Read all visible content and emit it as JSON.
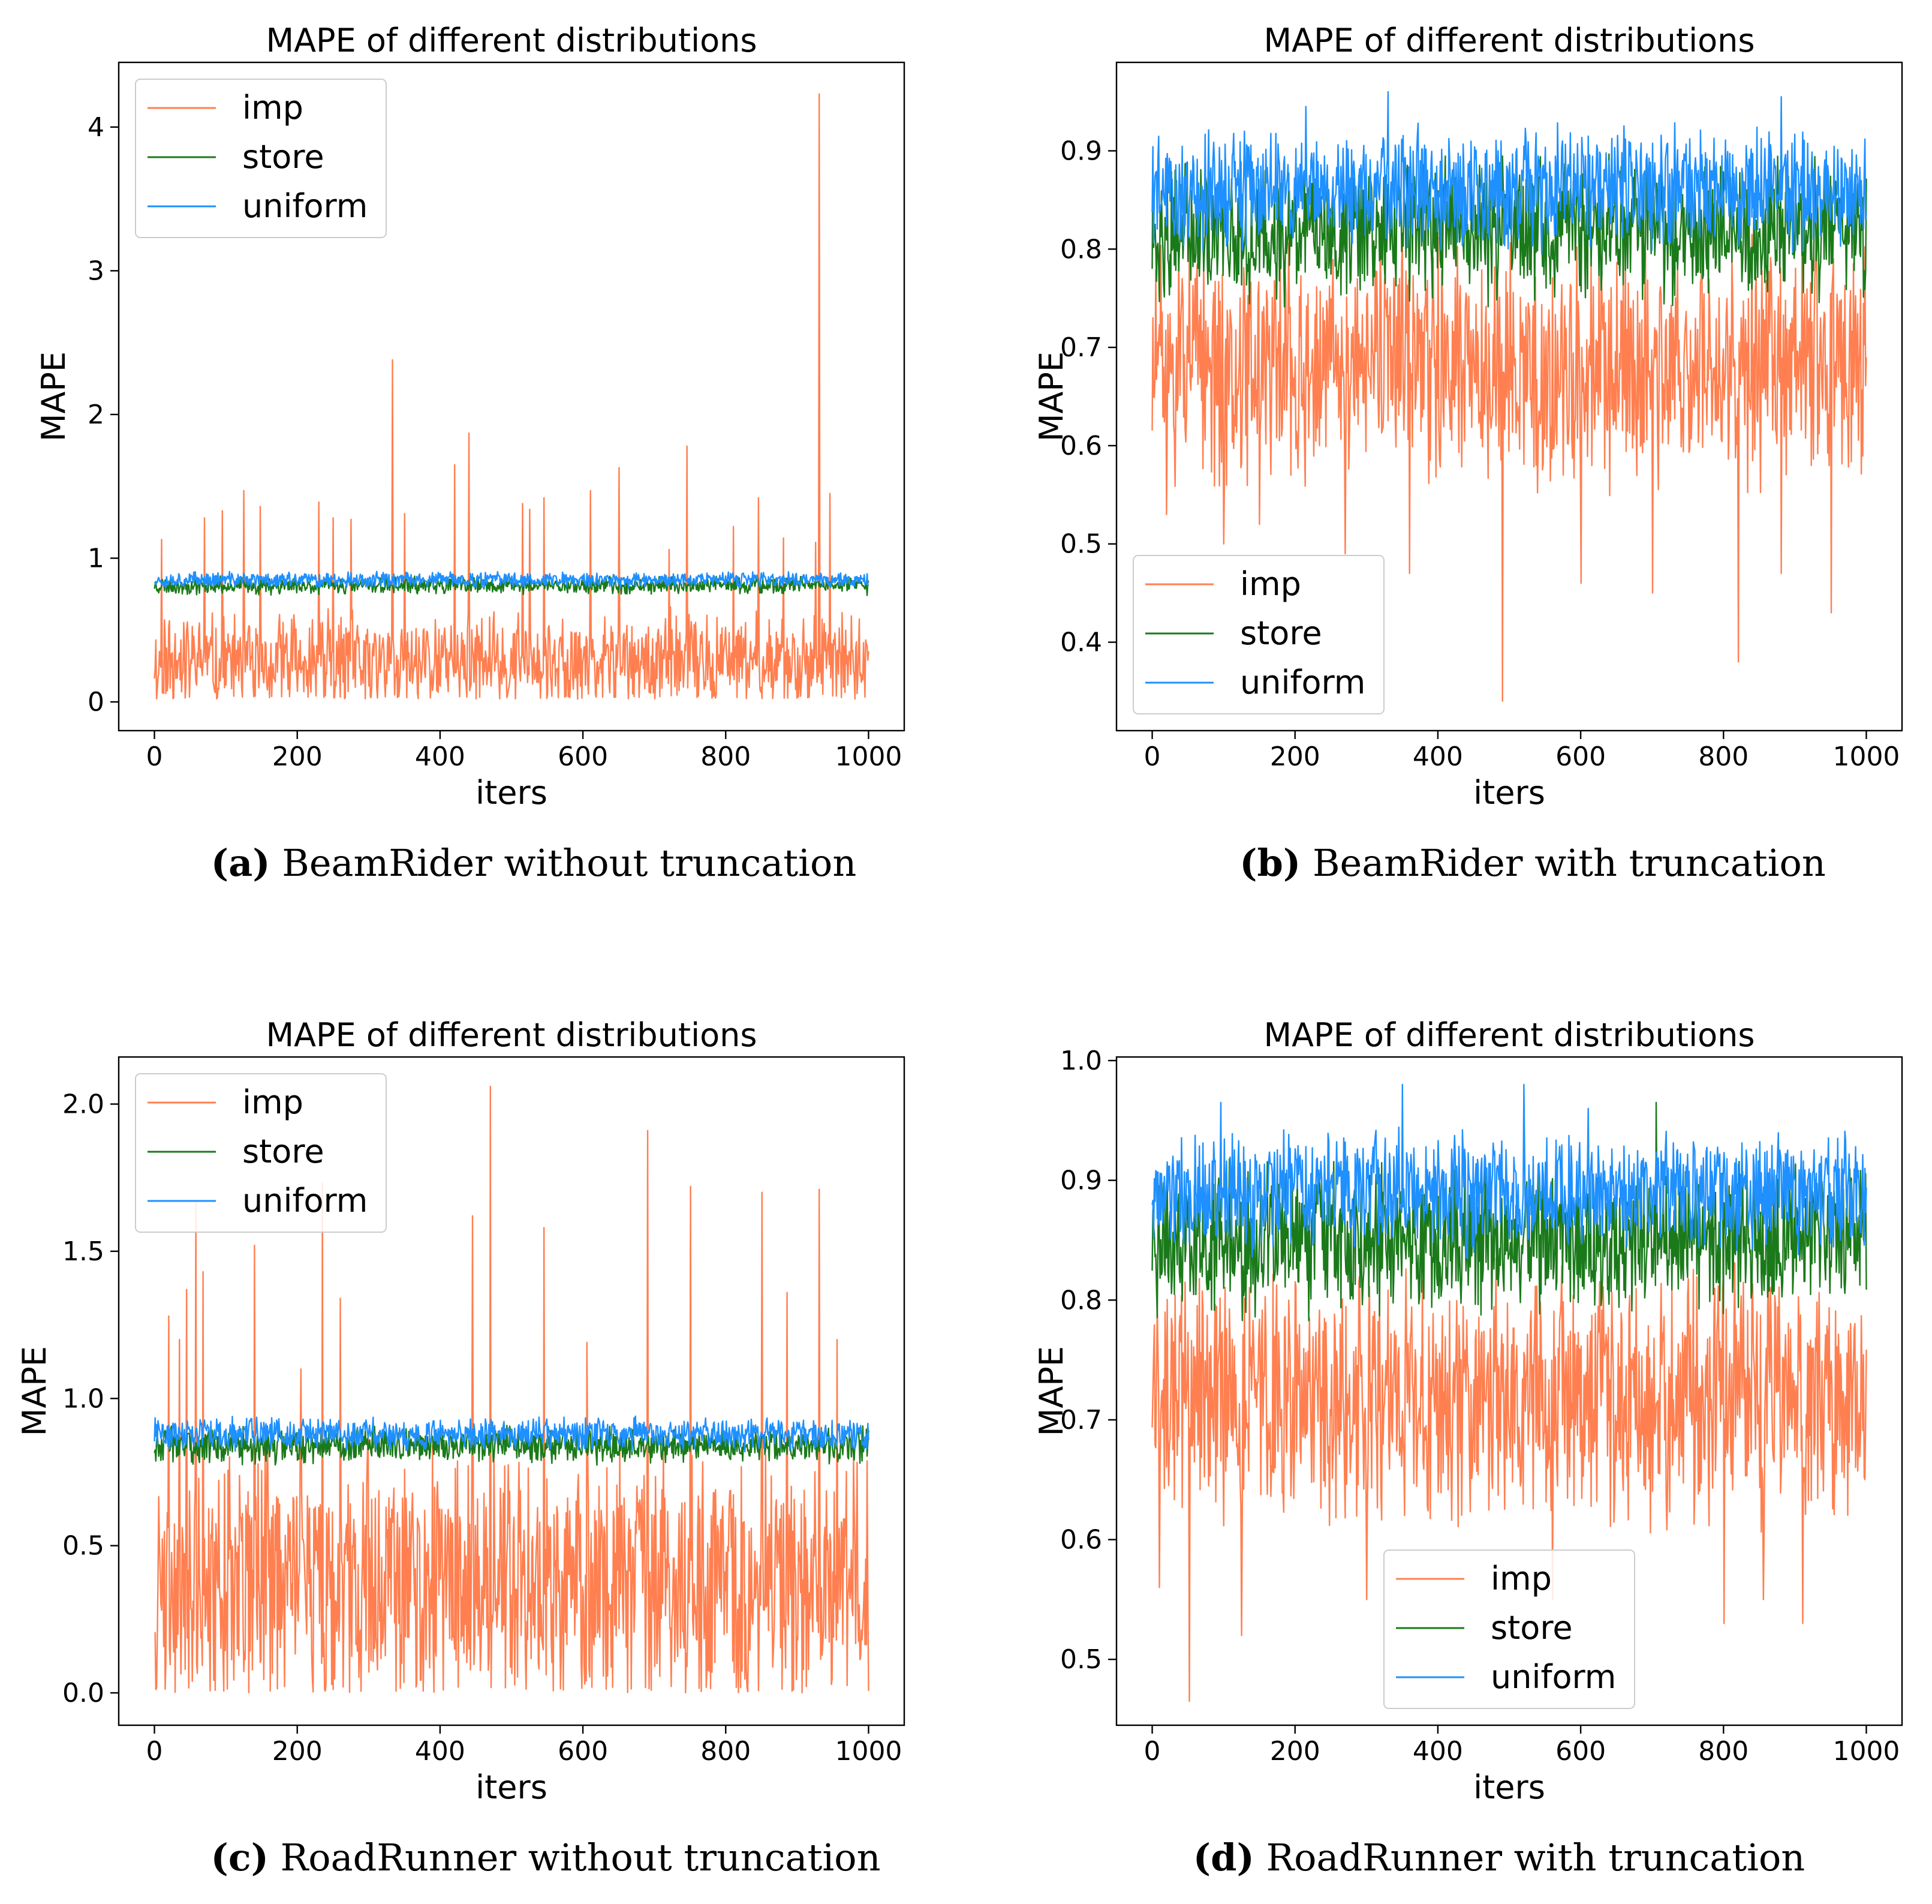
{
  "figure": {
    "subcaptions": [
      {
        "letter": "(a)",
        "text": " BeamRider without truncation"
      },
      {
        "letter": "(b)",
        "text": " BeamRider with truncation"
      },
      {
        "letter": "(c)",
        "text": " RoadRunner without truncation"
      },
      {
        "letter": "(d)",
        "text": " RoadRunner with truncation"
      }
    ]
  },
  "colors": {
    "imp": "#ff7f50",
    "store": "#1a7a1a",
    "uniform": "#1e90ff",
    "axis": "#000000"
  },
  "chart_data": [
    {
      "type": "line",
      "title": "MAPE of different distributions",
      "xlabel": "iters",
      "ylabel": "MAPE",
      "xlim": [
        -50,
        1050
      ],
      "ylim": [
        -0.2,
        4.45
      ],
      "xticks": [
        0,
        200,
        400,
        600,
        800,
        1000
      ],
      "xtick_labels": [
        "0",
        "200",
        "400",
        "600",
        "800",
        "1000"
      ],
      "yticks": [
        0,
        1,
        2,
        3,
        4
      ],
      "ytick_labels": [
        "0",
        "1",
        "2",
        "3",
        "4"
      ],
      "legend": [
        "imp",
        "store",
        "uniform"
      ],
      "legend_position": "upper-left",
      "series": [
        {
          "name": "imp",
          "n": 1000,
          "base": 0.28,
          "spread": 0.55,
          "min": 0.02,
          "seed": 11,
          "spikes": [
            [
              10,
              1.13
            ],
            [
              70,
              1.28
            ],
            [
              95,
              1.33
            ],
            [
              125,
              1.47
            ],
            [
              148,
              1.36
            ],
            [
              230,
              1.39
            ],
            [
              250,
              1.28
            ],
            [
              275,
              1.27
            ],
            [
              333,
              2.38
            ],
            [
              350,
              1.31
            ],
            [
              420,
              1.65
            ],
            [
              440,
              1.87
            ],
            [
              515,
              1.38
            ],
            [
              525,
              1.34
            ],
            [
              545,
              1.42
            ],
            [
              610,
              1.47
            ],
            [
              650,
              1.63
            ],
            [
              720,
              1.06
            ],
            [
              745,
              1.78
            ],
            [
              810,
              1.22
            ],
            [
              845,
              1.42
            ],
            [
              880,
              1.14
            ],
            [
              925,
              1.11
            ],
            [
              930,
              4.23
            ],
            [
              945,
              1.45
            ]
          ]
        },
        {
          "name": "store",
          "n": 1000,
          "base": 0.81,
          "spread": 0.1,
          "min": 0.72,
          "seed": 23,
          "spikes": []
        },
        {
          "name": "uniform",
          "n": 1000,
          "base": 0.85,
          "spread": 0.09,
          "min": 0.78,
          "seed": 37,
          "spikes": []
        }
      ]
    },
    {
      "type": "line",
      "title": "MAPE of different distributions",
      "xlabel": "iters",
      "ylabel": "MAPE",
      "xlim": [
        -50,
        1050
      ],
      "ylim": [
        0.31,
        0.99
      ],
      "xticks": [
        0,
        200,
        400,
        600,
        800,
        1000
      ],
      "xtick_labels": [
        "0",
        "200",
        "400",
        "600",
        "800",
        "1000"
      ],
      "yticks": [
        0.4,
        0.5,
        0.6,
        0.7,
        0.8,
        0.9
      ],
      "ytick_labels": [
        "0.4",
        "0.5",
        "0.6",
        "0.7",
        "0.8",
        "0.9"
      ],
      "legend": [
        "imp",
        "store",
        "uniform"
      ],
      "legend_position": "lower-left",
      "series": [
        {
          "name": "imp",
          "n": 1000,
          "base": 0.68,
          "spread": 0.2,
          "min": 0.46,
          "seed": 51,
          "spikes": [
            [
              20,
              0.53
            ],
            [
              100,
              0.5
            ],
            [
              150,
              0.52
            ],
            [
              270,
              0.49
            ],
            [
              360,
              0.47
            ],
            [
              490,
              0.34
            ],
            [
              600,
              0.46
            ],
            [
              700,
              0.45
            ],
            [
              820,
              0.38
            ],
            [
              880,
              0.47
            ],
            [
              950,
              0.43
            ]
          ]
        },
        {
          "name": "store",
          "n": 1000,
          "base": 0.82,
          "spread": 0.12,
          "min": 0.62,
          "seed": 63,
          "spikes": []
        },
        {
          "name": "uniform",
          "n": 1000,
          "base": 0.86,
          "spread": 0.1,
          "min": 0.72,
          "seed": 79,
          "spikes": [
            [
              330,
              0.96
            ],
            [
              880,
              0.955
            ],
            [
              215,
              0.945
            ]
          ]
        }
      ]
    },
    {
      "type": "line",
      "title": "MAPE of different distributions",
      "xlabel": "iters",
      "ylabel": "MAPE",
      "xlim": [
        -50,
        1050
      ],
      "ylim": [
        -0.11,
        2.16
      ],
      "xticks": [
        0,
        200,
        400,
        600,
        800,
        1000
      ],
      "xtick_labels": [
        "0",
        "200",
        "400",
        "600",
        "800",
        "1000"
      ],
      "yticks": [
        0.0,
        0.5,
        1.0,
        1.5,
        2.0
      ],
      "ytick_labels": [
        "0.0",
        "0.5",
        "1.0",
        "1.5",
        "2.0"
      ],
      "legend": [
        "imp",
        "store",
        "uniform"
      ],
      "legend_position": "upper-left",
      "series": [
        {
          "name": "imp",
          "n": 1000,
          "base": 0.38,
          "spread": 0.75,
          "min": 0.0,
          "seed": 91,
          "spikes": [
            [
              20,
              1.28
            ],
            [
              35,
              1.2
            ],
            [
              45,
              1.37
            ],
            [
              58,
              1.67
            ],
            [
              68,
              1.43
            ],
            [
              140,
              1.52
            ],
            [
              205,
              1.1
            ],
            [
              235,
              1.73
            ],
            [
              260,
              1.34
            ],
            [
              445,
              1.62
            ],
            [
              470,
              2.06
            ],
            [
              545,
              1.58
            ],
            [
              605,
              1.19
            ],
            [
              690,
              1.91
            ],
            [
              750,
              1.72
            ],
            [
              850,
              1.7
            ],
            [
              885,
              1.36
            ],
            [
              930,
              1.71
            ],
            [
              955,
              1.2
            ]
          ]
        },
        {
          "name": "store",
          "n": 1000,
          "base": 0.84,
          "spread": 0.1,
          "min": 0.72,
          "seed": 103,
          "spikes": []
        },
        {
          "name": "uniform",
          "n": 1000,
          "base": 0.88,
          "spread": 0.09,
          "min": 0.8,
          "seed": 117,
          "spikes": []
        }
      ]
    },
    {
      "type": "line",
      "title": "MAPE of different distributions",
      "xlabel": "iters",
      "ylabel": "MAPE",
      "xlim": [
        -50,
        1050
      ],
      "ylim": [
        0.445,
        1.003
      ],
      "xticks": [
        0,
        200,
        400,
        600,
        800,
        1000
      ],
      "xtick_labels": [
        "0",
        "200",
        "400",
        "600",
        "800",
        "1000"
      ],
      "yticks": [
        0.5,
        0.6,
        0.7,
        0.8,
        0.9,
        1.0
      ],
      "ytick_labels": [
        "0.5",
        "0.6",
        "0.7",
        "0.8",
        "0.9",
        "1.0"
      ],
      "legend": [
        "imp",
        "store",
        "uniform"
      ],
      "legend_position": "lower-center",
      "series": [
        {
          "name": "imp",
          "n": 1000,
          "base": 0.72,
          "spread": 0.17,
          "min": 0.56,
          "seed": 131,
          "spikes": [
            [
              10,
              0.56
            ],
            [
              52,
              0.465
            ],
            [
              125,
              0.52
            ],
            [
              300,
              0.55
            ],
            [
              560,
              0.55
            ],
            [
              800,
              0.53
            ],
            [
              910,
              0.53
            ],
            [
              855,
              0.55
            ]
          ]
        },
        {
          "name": "store",
          "n": 1000,
          "base": 0.85,
          "spread": 0.1,
          "min": 0.72,
          "seed": 149,
          "spikes": [
            [
              705,
              0.965
            ]
          ]
        },
        {
          "name": "uniform",
          "n": 1000,
          "base": 0.89,
          "spread": 0.08,
          "min": 0.74,
          "seed": 163,
          "spikes": [
            [
              96,
              0.965
            ],
            [
              350,
              0.98
            ],
            [
              520,
              0.98
            ],
            [
              610,
              0.96
            ]
          ]
        }
      ]
    }
  ]
}
